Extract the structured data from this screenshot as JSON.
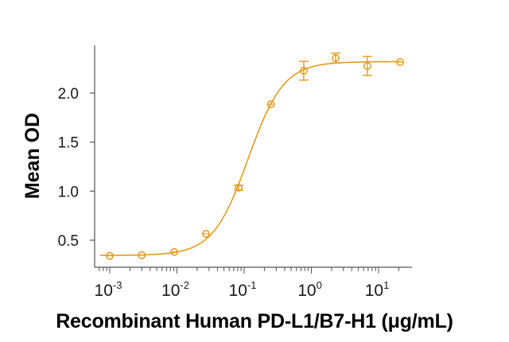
{
  "chart_data": {
    "type": "scatter",
    "title": "",
    "xlabel": "Recombinant Human PD-L1/B7-H1 (μg/mL)",
    "ylabel": "Mean OD",
    "xscale": "log",
    "xlim": [
      0.0007,
      28
    ],
    "ylim": [
      0.25,
      2.55
    ],
    "x_ticks": [
      0.001,
      0.01,
      0.1,
      1,
      10
    ],
    "x_tick_labels": [
      "10-3",
      "10-2",
      "10-1",
      "100",
      "101"
    ],
    "x_tick_bases": [
      "10",
      "10",
      "10",
      "10",
      "10"
    ],
    "x_tick_exponents": [
      "-3",
      "-2",
      "-1",
      "0",
      "1"
    ],
    "y_ticks": [
      0.5,
      1.0,
      1.5,
      2.0
    ],
    "y_tick_labels": [
      "0.5",
      "1.0",
      "1.5",
      "2.0"
    ],
    "grid": false,
    "legend": null,
    "color": "#E49B1F",
    "series": [
      {
        "name": "Mean OD",
        "x": [
          0.001,
          0.003,
          0.0091,
          0.027,
          0.083,
          0.25,
          0.77,
          2.3,
          6.8,
          20.9
        ],
        "y": [
          0.34,
          0.347,
          0.38,
          0.565,
          1.035,
          1.886,
          2.227,
          2.357,
          2.276,
          2.316
        ],
        "error": [
          0.01,
          0.01,
          0.015,
          0.015,
          0.025,
          0.01,
          0.095,
          0.05,
          0.097,
          0.01
        ]
      }
    ],
    "fit": {
      "type": "4PL",
      "bottom": 0.345,
      "top": 2.32,
      "ec50": 0.115,
      "hill": 1.65
    }
  }
}
